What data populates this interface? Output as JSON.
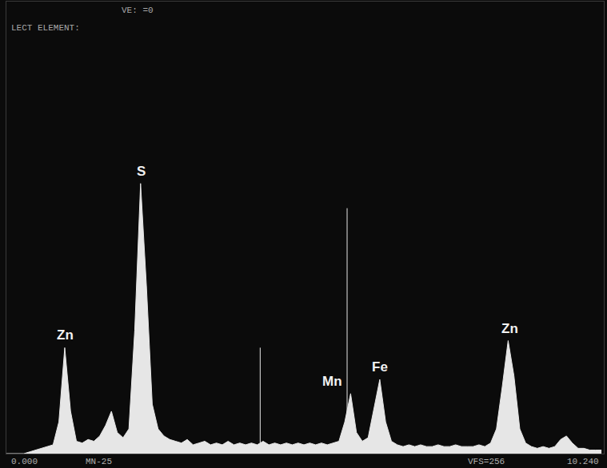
{
  "chart_data": {
    "type": "area",
    "x": [
      0.0,
      0.1,
      0.2,
      0.3,
      0.4,
      0.5,
      0.6,
      0.7,
      0.8,
      0.9,
      1.0,
      1.1,
      1.2,
      1.3,
      1.4,
      1.5,
      1.6,
      1.7,
      1.8,
      1.9,
      2.0,
      2.1,
      2.2,
      2.3,
      2.4,
      2.5,
      2.6,
      2.7,
      2.8,
      2.9,
      3.0,
      3.1,
      3.2,
      3.3,
      3.4,
      3.5,
      3.6,
      3.7,
      3.8,
      3.9,
      4.0,
      4.1,
      4.2,
      4.3,
      4.4,
      4.5,
      4.6,
      4.7,
      4.8,
      4.9,
      5.0,
      5.1,
      5.2,
      5.3,
      5.4,
      5.5,
      5.6,
      5.7,
      5.8,
      5.9,
      6.0,
      6.1,
      6.2,
      6.3,
      6.4,
      6.5,
      6.6,
      6.7,
      6.8,
      6.9,
      7.0,
      7.1,
      7.2,
      7.3,
      7.4,
      7.5,
      7.6,
      7.7,
      7.8,
      7.9,
      8.0,
      8.1,
      8.2,
      8.3,
      8.4,
      8.5,
      8.6,
      8.7,
      8.8,
      8.9,
      9.0,
      9.1,
      9.2,
      9.3,
      9.4,
      9.5,
      9.6,
      9.7,
      9.8,
      9.9,
      10.0,
      10.1,
      10.2
    ],
    "values": [
      0,
      0,
      0,
      0,
      1,
      2,
      3,
      4,
      5,
      18,
      60,
      24,
      7,
      6,
      8,
      7,
      10,
      16,
      24,
      12,
      9,
      14,
      70,
      153,
      95,
      28,
      14,
      10,
      8,
      7,
      6,
      8,
      5,
      6,
      7,
      5,
      6,
      5,
      7,
      5,
      6,
      5,
      6,
      5,
      7,
      5,
      6,
      5,
      6,
      5,
      6,
      5,
      6,
      5,
      6,
      5,
      6,
      7,
      18,
      34,
      12,
      7,
      9,
      26,
      42,
      18,
      7,
      5,
      4,
      5,
      4,
      5,
      4,
      4,
      5,
      4,
      4,
      5,
      4,
      4,
      4,
      5,
      4,
      6,
      14,
      38,
      64,
      44,
      14,
      6,
      4,
      3,
      4,
      3,
      4,
      8,
      10,
      6,
      3,
      3,
      2,
      2,
      2
    ],
    "color": "#e6e6e6",
    "xlim": [
      0,
      10.24
    ],
    "ylim": [
      0,
      256
    ],
    "tick_labels": false,
    "grid": false,
    "peak_labels": [
      {
        "text": "Zn",
        "x": 1.01
      },
      {
        "text": "S",
        "x": 2.31
      },
      {
        "text": "Mn",
        "x": 5.9
      },
      {
        "text": "Fe",
        "x": 6.4
      },
      {
        "text": "Zn",
        "x": 8.63
      }
    ],
    "cursor_lines": {
      "x": [
        4.35,
        5.84
      ],
      "values": [
        60,
        139
      ]
    },
    "screen_text": {
      "top": [
        "VE: =0",
        "LECT ELEMENT:"
      ],
      "bottom": [
        "0.000",
        "MN-25",
        "VFS=256",
        "10.240"
      ]
    }
  }
}
